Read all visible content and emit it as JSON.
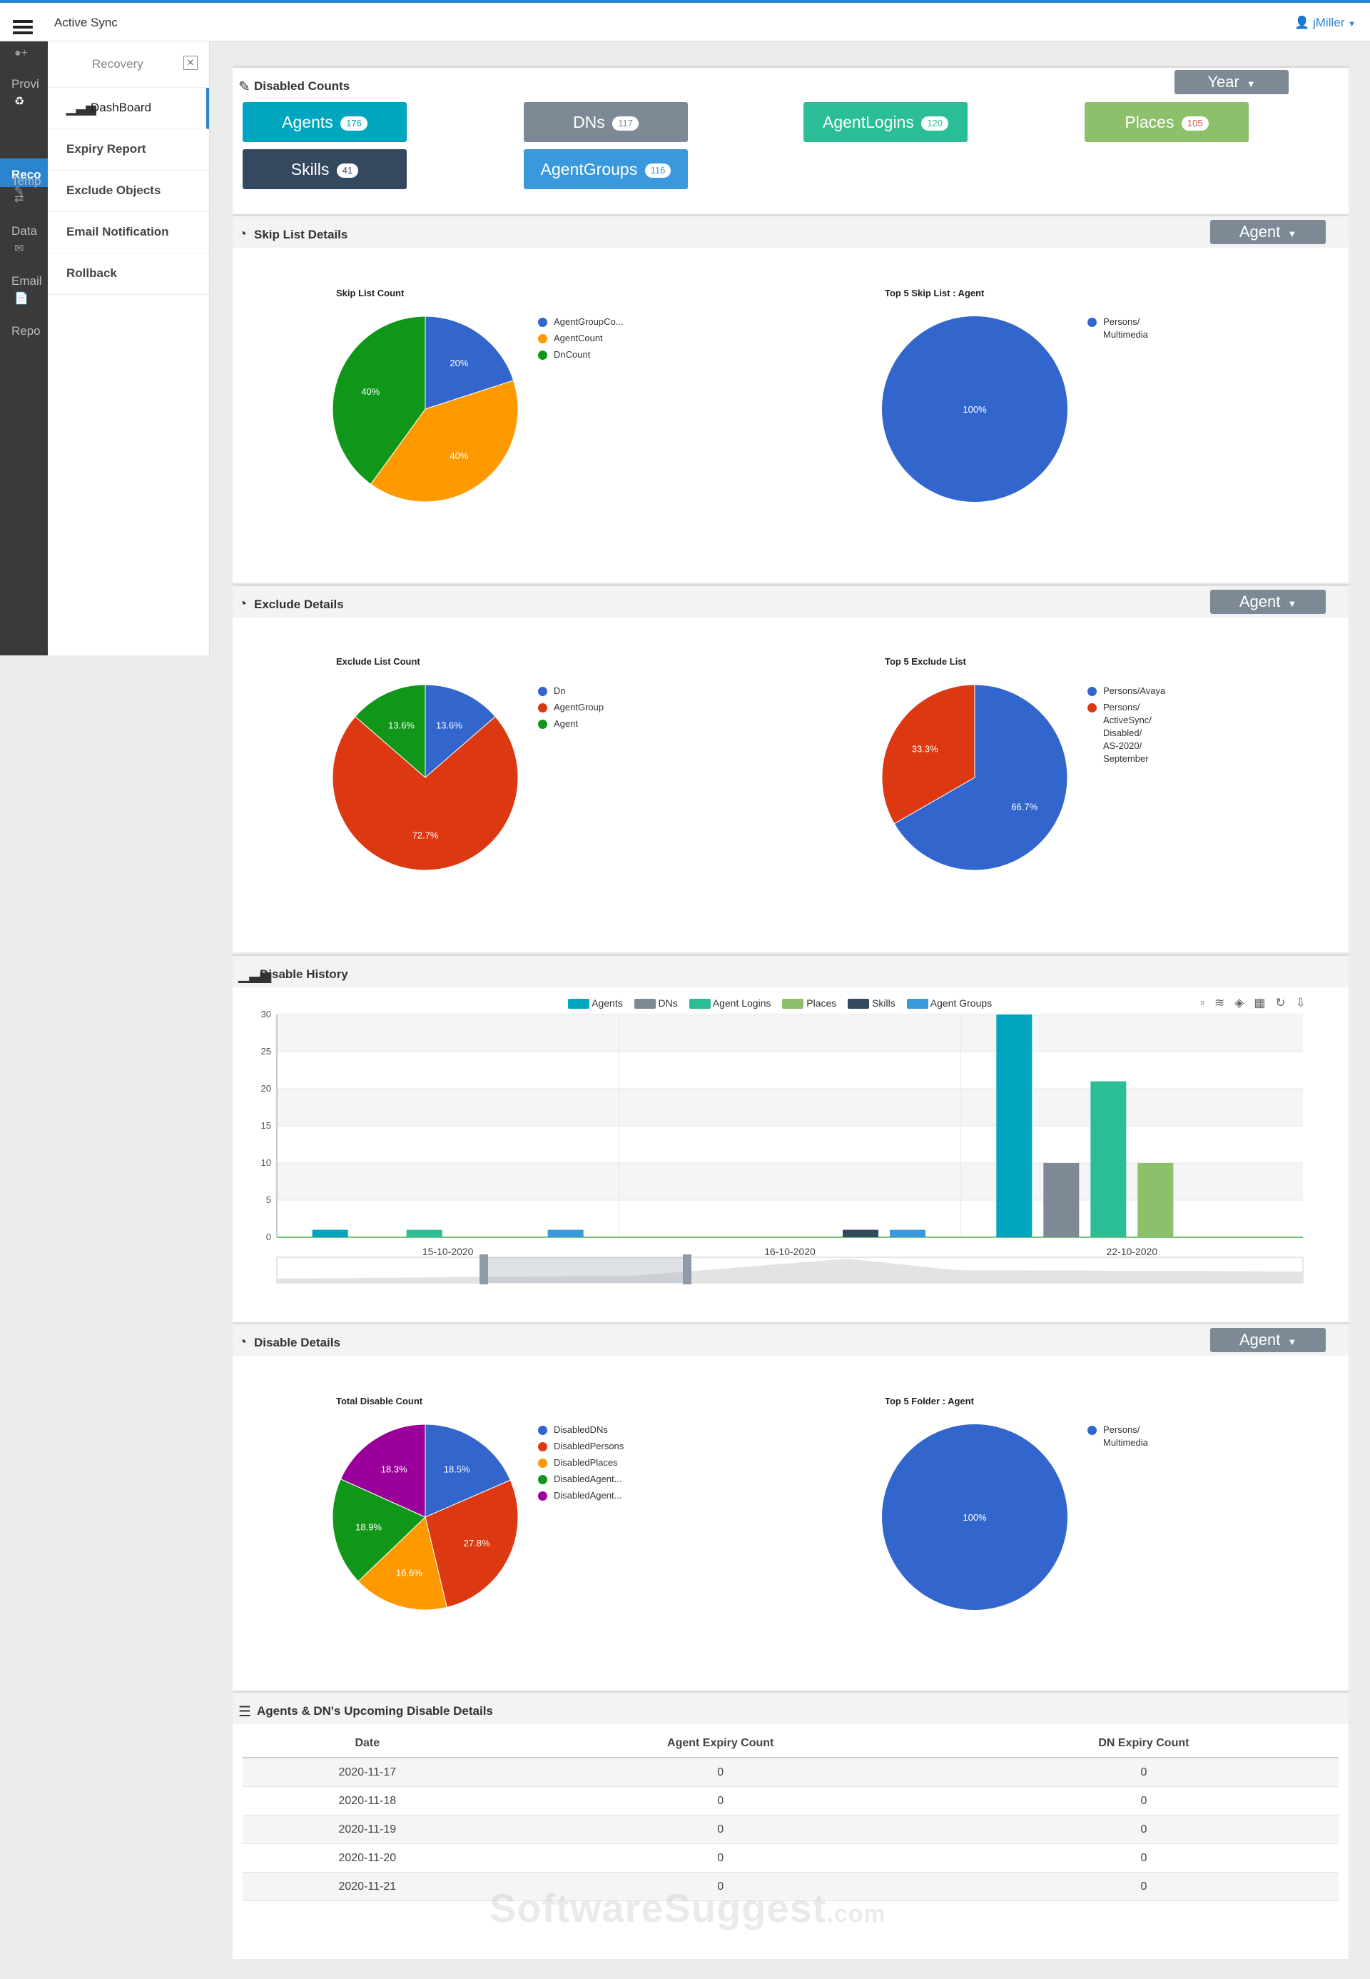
{
  "app": {
    "title": "Active Sync",
    "user": "jMiller"
  },
  "rail": {
    "items": [
      "Provi",
      "Reco",
      "Temp",
      "Data",
      "Email",
      "Repo"
    ]
  },
  "submenu": {
    "title": "Recovery",
    "items": [
      "DashBoard",
      "Expiry Report",
      "Exclude Objects",
      "Email Notification",
      "Rollback"
    ]
  },
  "disabled_counts": {
    "title": "Disabled Counts",
    "period": "Year",
    "buttons": [
      {
        "label": "Agents",
        "count": "176",
        "color": "#00a6c0"
      },
      {
        "label": "DNs",
        "count": "117",
        "color": "#7d8a96"
      },
      {
        "label": "AgentLogins",
        "count": "120",
        "color": "#2bbd96"
      },
      {
        "label": "Places",
        "count": "105",
        "color": "#8cc06a"
      },
      {
        "label": "Skills",
        "count": "41",
        "color": "#34495e"
      },
      {
        "label": "AgentGroups",
        "count": "116",
        "color": "#3a99dc"
      }
    ]
  },
  "skip_list": {
    "title": "Skip List Details",
    "filter": "Agent",
    "left_title": "Skip List Count",
    "right_title": "Top 5 Skip List : Agent"
  },
  "exclude": {
    "title": "Exclude Details",
    "filter": "Agent",
    "left_title": "Exclude List Count",
    "right_title": "Top 5 Exclude List"
  },
  "history": {
    "title": "Disable History",
    "legend": [
      {
        "name": "Agents",
        "color": "#00a6c0"
      },
      {
        "name": "DNs",
        "color": "#7d8a96"
      },
      {
        "name": "Agent Logins",
        "color": "#2bbd96"
      },
      {
        "name": "Places",
        "color": "#8cc06a"
      },
      {
        "name": "Skills",
        "color": "#34495e"
      },
      {
        "name": "Agent Groups",
        "color": "#3a99dc"
      }
    ]
  },
  "disable_details": {
    "title": "Disable Details",
    "filter": "Agent",
    "left_title": "Total Disable Count",
    "right_title": "Top 5 Folder : Agent"
  },
  "upcoming": {
    "title": "Agents & DN's Upcoming Disable Details",
    "columns": [
      "Date",
      "Agent Expiry Count",
      "DN Expiry Count"
    ],
    "rows": [
      [
        "2020-11-17",
        "0",
        "0"
      ],
      [
        "2020-11-18",
        "0",
        "0"
      ],
      [
        "2020-11-19",
        "0",
        "0"
      ],
      [
        "2020-11-20",
        "0",
        "0"
      ],
      [
        "2020-11-21",
        "0",
        "0"
      ]
    ]
  },
  "watermark": {
    "main": "SoftwareSuggest",
    "suffix": ".com"
  },
  "chart_data": [
    {
      "type": "pie",
      "title": "Skip List Count",
      "labels": [
        "AgentGroupCo...",
        "AgentCount",
        "DnCount"
      ],
      "values": [
        20,
        40,
        40
      ],
      "value_labels": [
        "20%",
        "40%",
        "40%"
      ],
      "colors": [
        "#3366cc",
        "#ff9900",
        "#109618"
      ]
    },
    {
      "type": "pie",
      "title": "Top 5 Skip List : Agent",
      "labels": [
        "Persons/\nMultimedia"
      ],
      "values": [
        100
      ],
      "value_labels": [
        "100%"
      ],
      "colors": [
        "#3366cc"
      ]
    },
    {
      "type": "pie",
      "title": "Exclude List Count",
      "labels": [
        "Dn",
        "AgentGroup",
        "Agent"
      ],
      "values": [
        13.6,
        72.7,
        13.6
      ],
      "value_labels": [
        "13.6%",
        "72.7%",
        "13.6%"
      ],
      "colors": [
        "#3366cc",
        "#dc3912",
        "#109618"
      ]
    },
    {
      "type": "pie",
      "title": "Top 5 Exclude List",
      "labels": [
        "Persons/Avaya",
        "Persons/\nActiveSync/\nDisabled/\nAS-2020/\nSeptember"
      ],
      "values": [
        66.7,
        33.3
      ],
      "value_labels": [
        "66.7%",
        "33.3%"
      ],
      "colors": [
        "#3366cc",
        "#dc3912"
      ]
    },
    {
      "type": "bar",
      "title": "Disable History",
      "categories": [
        "15-10-2020",
        "16-10-2020",
        "22-10-2020"
      ],
      "ylim": [
        0,
        30
      ],
      "yticks": [
        0,
        5,
        10,
        15,
        20,
        25,
        30
      ],
      "series": [
        {
          "name": "Agents",
          "values": [
            1,
            0,
            30
          ]
        },
        {
          "name": "DNs",
          "values": [
            0,
            0,
            10
          ]
        },
        {
          "name": "Agent Logins",
          "values": [
            1,
            0,
            21
          ]
        },
        {
          "name": "Places",
          "values": [
            0,
            0,
            10
          ]
        },
        {
          "name": "Skills",
          "values": [
            0,
            1,
            0
          ]
        },
        {
          "name": "Agent Groups",
          "values": [
            1,
            1,
            0
          ]
        }
      ]
    },
    {
      "type": "pie",
      "title": "Total Disable Count",
      "labels": [
        "DisabledDNs",
        "DisabledPersons",
        "DisabledPlaces",
        "DisabledAgent...",
        "DisabledAgent..."
      ],
      "values": [
        18.5,
        27.8,
        16.6,
        18.9,
        18.3
      ],
      "value_labels": [
        "18.5%",
        "27.8%",
        "16.6%",
        "18.9%",
        "18.3%"
      ],
      "colors": [
        "#3366cc",
        "#dc3912",
        "#ff9900",
        "#109618",
        "#990099"
      ]
    },
    {
      "type": "pie",
      "title": "Top 5 Folder : Agent",
      "labels": [
        "Persons/\nMultimedia"
      ],
      "values": [
        100
      ],
      "value_labels": [
        "100%"
      ],
      "colors": [
        "#3366cc"
      ]
    }
  ]
}
